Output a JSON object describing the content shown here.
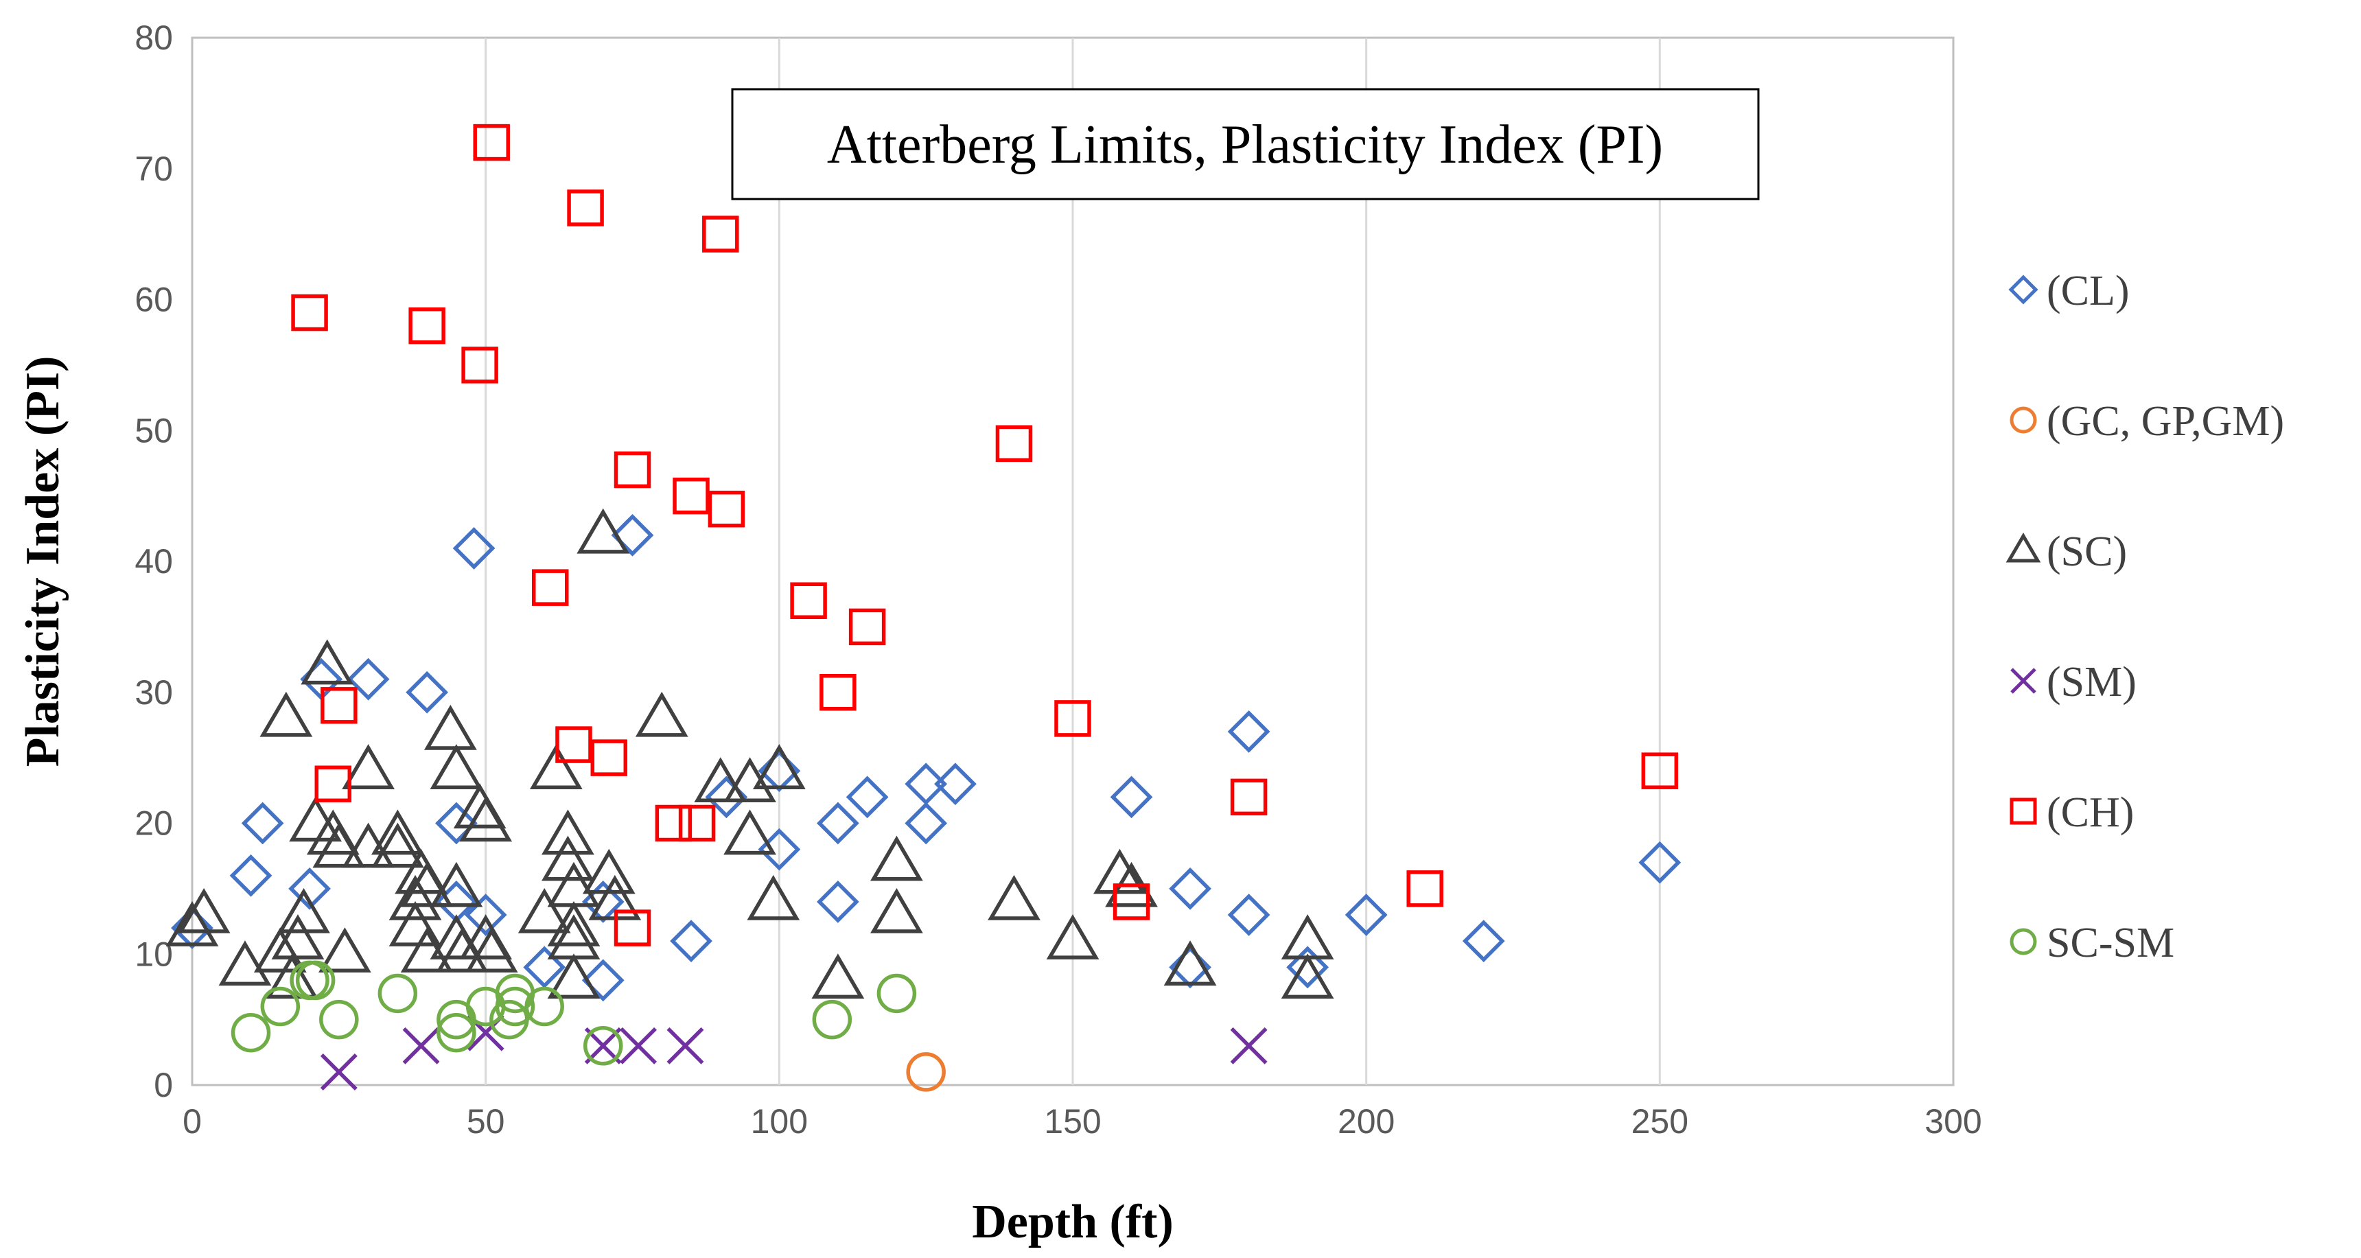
{
  "chart_data": {
    "type": "scatter",
    "title": "Atterberg Limits, Plasticity Index (PI)",
    "xlabel": "Depth (ft)",
    "ylabel": "Plasticity Index (PI)",
    "xlim": [
      0,
      300
    ],
    "ylim": [
      0,
      80
    ],
    "xticks": [
      "0",
      "50",
      "100",
      "150",
      "200",
      "250",
      "300"
    ],
    "yticks": [
      "0",
      "10",
      "20",
      "30",
      "40",
      "50",
      "60",
      "70",
      "80"
    ],
    "grid": "vertical",
    "legend_position": "right",
    "series": [
      {
        "name": "(CL)",
        "marker": "diamond",
        "color": "#4472C4",
        "points": [
          [
            0,
            12
          ],
          [
            10,
            16
          ],
          [
            12,
            20
          ],
          [
            20,
            15
          ],
          [
            22,
            31
          ],
          [
            30,
            31
          ],
          [
            40,
            30
          ],
          [
            45,
            20
          ],
          [
            45,
            14
          ],
          [
            48,
            41
          ],
          [
            50,
            13
          ],
          [
            60,
            9
          ],
          [
            70,
            8
          ],
          [
            70,
            14
          ],
          [
            75,
            42
          ],
          [
            85,
            11
          ],
          [
            91,
            22
          ],
          [
            100,
            24
          ],
          [
            100,
            18
          ],
          [
            110,
            20
          ],
          [
            110,
            14
          ],
          [
            115,
            22
          ],
          [
            125,
            23
          ],
          [
            125,
            20
          ],
          [
            130,
            23
          ],
          [
            160,
            22
          ],
          [
            170,
            15
          ],
          [
            170,
            9
          ],
          [
            180,
            27
          ],
          [
            180,
            13
          ],
          [
            190,
            9
          ],
          [
            200,
            13
          ],
          [
            220,
            11
          ],
          [
            250,
            17
          ]
        ]
      },
      {
        "name": "(GC, GP,GM)",
        "marker": "circle",
        "color": "#ED7D31",
        "points": [
          [
            125,
            1
          ]
        ]
      },
      {
        "name": "(SC)",
        "marker": "triangle",
        "color": "#404040",
        "points": [
          [
            0,
            12
          ],
          [
            2,
            13
          ],
          [
            9,
            9
          ],
          [
            15,
            10
          ],
          [
            16,
            28
          ],
          [
            17,
            8
          ],
          [
            18,
            11
          ],
          [
            19,
            13
          ],
          [
            21,
            20
          ],
          [
            23,
            32
          ],
          [
            24,
            19
          ],
          [
            25,
            18
          ],
          [
            26,
            10
          ],
          [
            30,
            24
          ],
          [
            30,
            18
          ],
          [
            35,
            19
          ],
          [
            35,
            18
          ],
          [
            38,
            14
          ],
          [
            38,
            12
          ],
          [
            39,
            16
          ],
          [
            40,
            15
          ],
          [
            40,
            10
          ],
          [
            44,
            27
          ],
          [
            45,
            24
          ],
          [
            45,
            15
          ],
          [
            45,
            11
          ],
          [
            46,
            10
          ],
          [
            49,
            21
          ],
          [
            50,
            20
          ],
          [
            50,
            11
          ],
          [
            51,
            10
          ],
          [
            60,
            13
          ],
          [
            62,
            24
          ],
          [
            64,
            19
          ],
          [
            64,
            17
          ],
          [
            65,
            15
          ],
          [
            65,
            12
          ],
          [
            65,
            11
          ],
          [
            65,
            8
          ],
          [
            70,
            42
          ],
          [
            71,
            16
          ],
          [
            72,
            14
          ],
          [
            80,
            28
          ],
          [
            90,
            23
          ],
          [
            95,
            23
          ],
          [
            95,
            19
          ],
          [
            99,
            14
          ],
          [
            100,
            24
          ],
          [
            110,
            8
          ],
          [
            120,
            17
          ],
          [
            120,
            13
          ],
          [
            140,
            14
          ],
          [
            150,
            11
          ],
          [
            158,
            16
          ],
          [
            160,
            15
          ],
          [
            170,
            9
          ],
          [
            190,
            11
          ],
          [
            190,
            8
          ]
        ]
      },
      {
        "name": "(SM)",
        "marker": "x",
        "color": "#7030A0",
        "points": [
          [
            25,
            1
          ],
          [
            39,
            3
          ],
          [
            50,
            4
          ],
          [
            70,
            3
          ],
          [
            76,
            3
          ],
          [
            84,
            3
          ],
          [
            180,
            3
          ]
        ]
      },
      {
        "name": "(CH)",
        "marker": "square",
        "color": "#FF0000",
        "points": [
          [
            20,
            59
          ],
          [
            24,
            23
          ],
          [
            25,
            29
          ],
          [
            40,
            58
          ],
          [
            49,
            55
          ],
          [
            51,
            72
          ],
          [
            61,
            38
          ],
          [
            65,
            26
          ],
          [
            67,
            67
          ],
          [
            71,
            25
          ],
          [
            75,
            47
          ],
          [
            75,
            12
          ],
          [
            82,
            20
          ],
          [
            85,
            45
          ],
          [
            86,
            20
          ],
          [
            90,
            65
          ],
          [
            91,
            44
          ],
          [
            105,
            37
          ],
          [
            110,
            30
          ],
          [
            115,
            35
          ],
          [
            140,
            49
          ],
          [
            150,
            28
          ],
          [
            160,
            14
          ],
          [
            180,
            22
          ],
          [
            210,
            15
          ],
          [
            250,
            24
          ]
        ]
      },
      {
        "name": "SC-SM",
        "marker": "circle",
        "color": "#70AD47",
        "points": [
          [
            10,
            4
          ],
          [
            15,
            6
          ],
          [
            20,
            8
          ],
          [
            21,
            8
          ],
          [
            25,
            5
          ],
          [
            35,
            7
          ],
          [
            45,
            5
          ],
          [
            45,
            4
          ],
          [
            50,
            6
          ],
          [
            54,
            5
          ],
          [
            55,
            6
          ],
          [
            55,
            7
          ],
          [
            60,
            6
          ],
          [
            70,
            3
          ],
          [
            109,
            5
          ],
          [
            120,
            7
          ]
        ]
      }
    ]
  }
}
